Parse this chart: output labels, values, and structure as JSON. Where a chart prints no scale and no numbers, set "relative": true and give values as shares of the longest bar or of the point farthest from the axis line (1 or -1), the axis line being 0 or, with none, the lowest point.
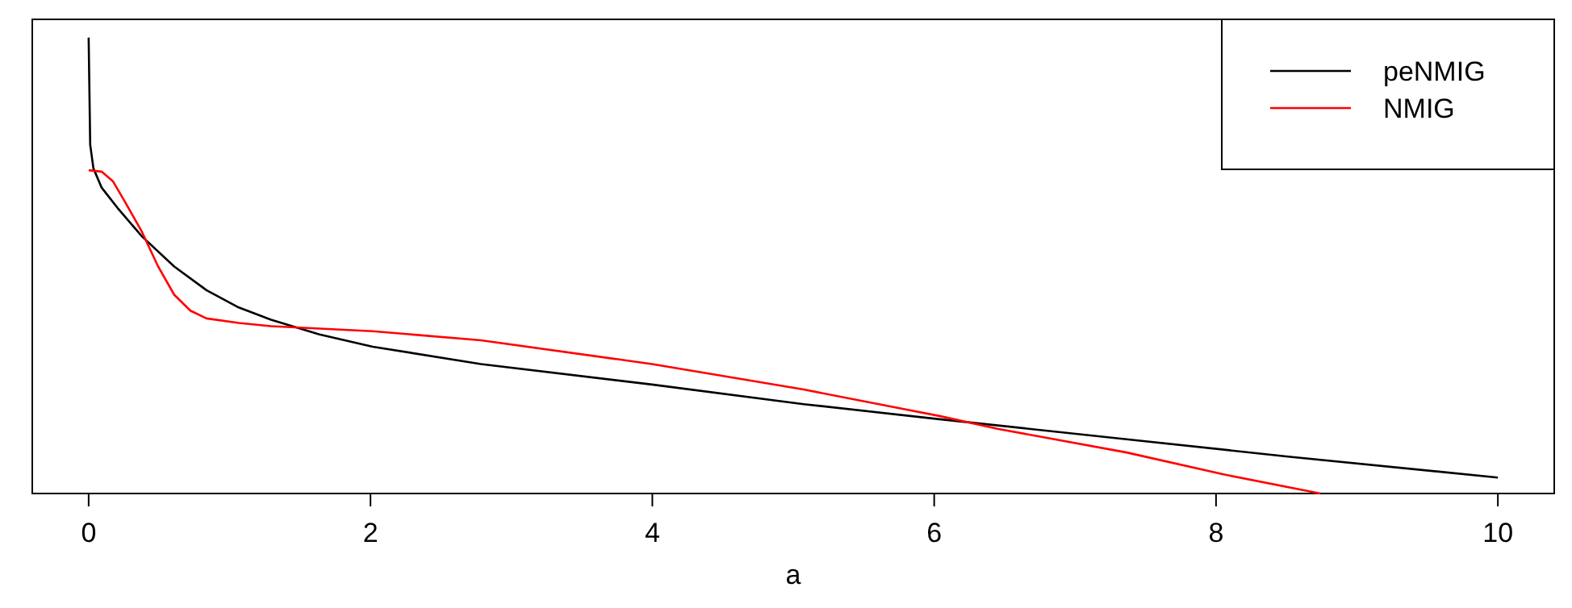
{
  "chart_data": {
    "type": "line",
    "relative": true,
    "xlabel": "a",
    "xlim": [
      -0.4,
      10.4
    ],
    "xticks": [
      0,
      2,
      4,
      6,
      8,
      10
    ],
    "legend": "top right",
    "grid": false,
    "marker": "none",
    "line_style": "solid",
    "series": [
      {
        "name": "peNMIG",
        "color": "#000000",
        "x": [
          0,
          0.011,
          0.034,
          0.092,
          0.206,
          0.378,
          0.607,
          0.836,
          1.065,
          1.294,
          1.638,
          2.016,
          2.784,
          3.998,
          5.074,
          6.037,
          7.365,
          8.511,
          10.0
        ],
        "values": [
          1.0,
          0.765,
          0.713,
          0.671,
          0.626,
          0.564,
          0.498,
          0.446,
          0.408,
          0.381,
          0.349,
          0.322,
          0.284,
          0.239,
          0.196,
          0.163,
          0.119,
          0.081,
          0.035
        ]
      },
      {
        "name": "NMIG",
        "color": "#ff0000",
        "x": [
          0,
          0.092,
          0.172,
          0.263,
          0.378,
          0.493,
          0.607,
          0.722,
          0.836,
          1.065,
          1.294,
          2.016,
          2.784,
          3.998,
          5.074,
          6.037,
          6.449,
          7.365,
          8.053,
          8.74
        ],
        "values": [
          0.709,
          0.706,
          0.685,
          0.637,
          0.574,
          0.498,
          0.436,
          0.401,
          0.384,
          0.374,
          0.367,
          0.356,
          0.336,
          0.284,
          0.228,
          0.17,
          0.142,
          0.09,
          0.042,
          0.0
        ]
      }
    ]
  }
}
